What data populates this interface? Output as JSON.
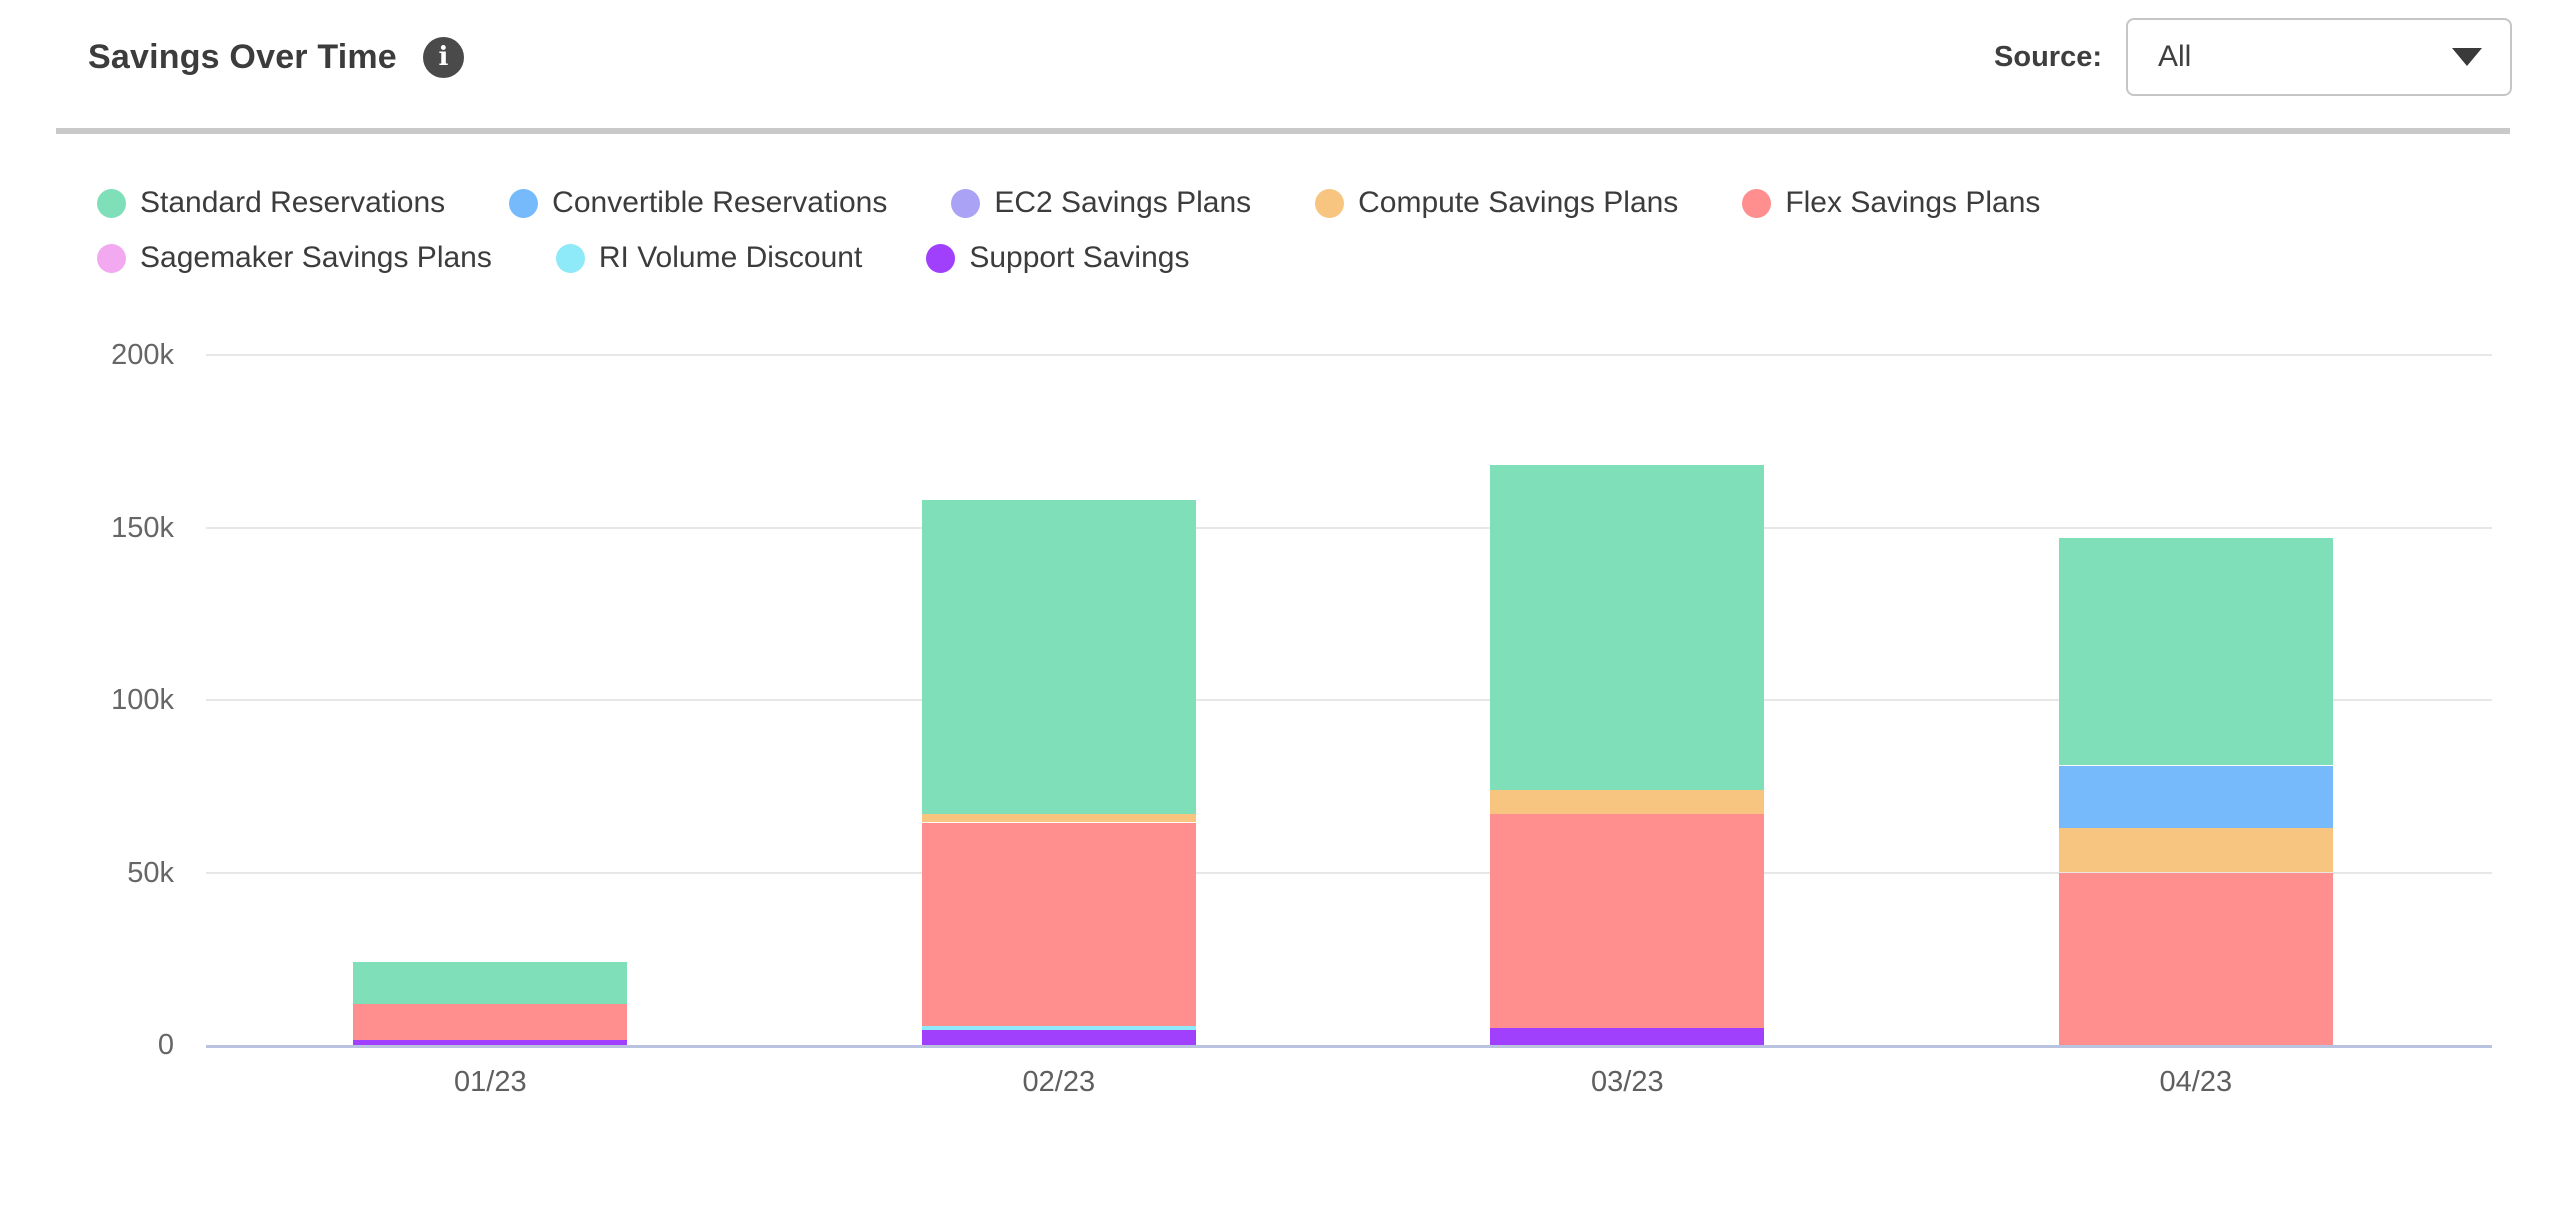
{
  "header": {
    "title": "Savings Over Time",
    "info_icon_glyph": "i",
    "source_label": "Source:",
    "source_value": "All"
  },
  "colors": {
    "title_text": "#3c3c3c",
    "divider": "#c9c9c9",
    "gridline": "#e7e7e7",
    "axis_line": "#b9c2df",
    "y_tick_label": "#666666",
    "x_tick_label": "#5f5f5f",
    "legend_text": "#3c3c3c",
    "info_icon_bg": "#4a4a4a",
    "dropdown_border": "#c6c6c6"
  },
  "chart_data": {
    "type": "bar",
    "stacked": true,
    "title": "Savings Over Time",
    "categories": [
      "01/23",
      "02/23",
      "03/23",
      "04/23"
    ],
    "value_unit": "USD thousands (k)",
    "series": [
      {
        "name": "Standard Reservations",
        "color": "#7edfb9",
        "values_k": [
          12,
          91,
          94,
          66
        ]
      },
      {
        "name": "Convertible Reservations",
        "color": "#76bafb",
        "values_k": [
          0,
          0,
          0,
          18
        ]
      },
      {
        "name": "EC2 Savings Plans",
        "color": "#a9a2f5",
        "values_k": [
          0,
          0,
          0,
          0
        ]
      },
      {
        "name": "Compute Savings Plans",
        "color": "#f8c581",
        "values_k": [
          0,
          2.5,
          7,
          13
        ]
      },
      {
        "name": "Flex Savings Plans",
        "color": "#fe8f8e",
        "values_k": [
          10.5,
          59,
          62,
          50
        ]
      },
      {
        "name": "Sagemaker Savings Plans",
        "color": "#f2a9ef",
        "values_k": [
          0,
          0,
          0,
          0
        ]
      },
      {
        "name": "RI Volume Discount",
        "color": "#8ee9f9",
        "values_k": [
          0,
          1.2,
          0,
          0
        ]
      },
      {
        "name": "Support Savings",
        "color": "#a040fc",
        "values_k": [
          1.5,
          4.3,
          5,
          0
        ]
      }
    ],
    "stack_order_bottom_to_top": [
      "Support Savings",
      "RI Volume Discount",
      "Sagemaker Savings Plans",
      "Flex Savings Plans",
      "Compute Savings Plans",
      "EC2 Savings Plans",
      "Convertible Reservations",
      "Standard Reservations"
    ],
    "totals_k": [
      24,
      158,
      168,
      147
    ],
    "y_axis": {
      "min_k": 0,
      "max_k": 200,
      "tick_values_k": [
        0,
        50,
        100,
        150,
        200
      ],
      "tick_labels": [
        "0",
        "50k",
        "100k",
        "150k",
        "200k"
      ]
    },
    "grid": "horizontal",
    "legend_position": "top-left"
  }
}
